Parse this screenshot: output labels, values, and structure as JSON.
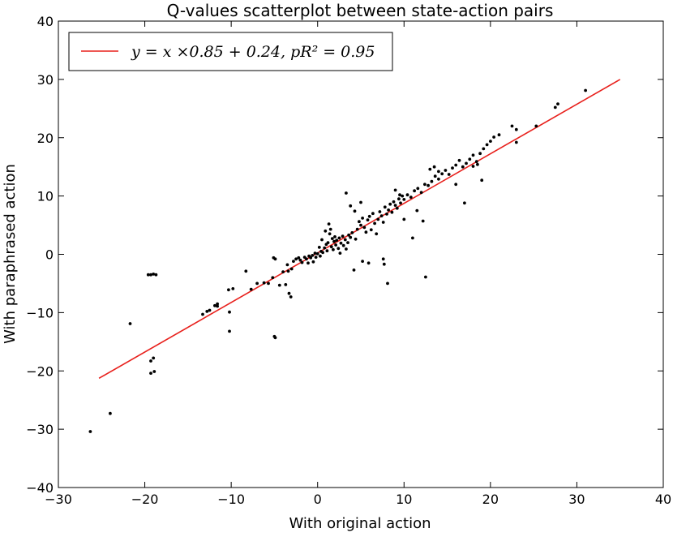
{
  "chart_data": {
    "type": "scatter",
    "title": "Q-values scatterplot between state-action pairs",
    "xlabel": "With original action",
    "ylabel": "With paraphrased action",
    "xlim": [
      -30,
      40
    ],
    "ylim": [
      -40,
      40
    ],
    "xticks": [
      "−30",
      "−20",
      "−10",
      "0",
      "10",
      "20",
      "30",
      "40"
    ],
    "yticks": [
      "−40",
      "−30",
      "−20",
      "−10",
      "0",
      "10",
      "20",
      "30",
      "40"
    ],
    "grid": false,
    "legend": {
      "placement": "top-left",
      "label": "y = x ×0.85 + 0.24,  pR² = 0.95"
    },
    "colors": {
      "points": "#000000",
      "fit_line": "#e8201c"
    },
    "fit_line": {
      "slope": 0.85,
      "intercept": 0.24,
      "x_range": [
        -25.3,
        35
      ]
    },
    "points": [
      [
        -26.3,
        -30.4
      ],
      [
        -24.0,
        -27.3
      ],
      [
        -21.7,
        -11.9
      ],
      [
        -19.6,
        -3.5
      ],
      [
        -19.3,
        -3.5
      ],
      [
        -19.0,
        -3.4
      ],
      [
        -18.7,
        -3.5
      ],
      [
        -19.3,
        -18.3
      ],
      [
        -19.0,
        -17.8
      ],
      [
        -19.3,
        -20.4
      ],
      [
        -18.9,
        -20.1
      ],
      [
        -13.3,
        -10.3
      ],
      [
        -12.8,
        -9.8
      ],
      [
        -12.5,
        -9.6
      ],
      [
        -11.9,
        -8.8
      ],
      [
        -11.6,
        -8.5
      ],
      [
        -11.6,
        -8.9
      ],
      [
        -10.3,
        -6.1
      ],
      [
        -10.2,
        -9.9
      ],
      [
        -9.8,
        -5.9
      ],
      [
        -10.2,
        -13.2
      ],
      [
        -8.3,
        -2.9
      ],
      [
        -7.7,
        -6.0
      ],
      [
        -7.0,
        -5.0
      ],
      [
        -6.2,
        -4.9
      ],
      [
        -5.7,
        -5.0
      ],
      [
        -5.1,
        -0.6
      ],
      [
        -4.9,
        -0.8
      ],
      [
        -5.0,
        -14.1
      ],
      [
        -4.9,
        -14.3
      ],
      [
        -5.2,
        -4.0
      ],
      [
        -4.4,
        -5.3
      ],
      [
        -4.0,
        -3.0
      ],
      [
        -3.7,
        -5.2
      ],
      [
        -3.5,
        -1.8
      ],
      [
        -3.4,
        -2.9
      ],
      [
        -3.3,
        -6.7
      ],
      [
        -3.1,
        -7.3
      ],
      [
        -3.0,
        -2.5
      ],
      [
        -2.8,
        -1.2
      ],
      [
        -2.5,
        -0.8
      ],
      [
        -2.2,
        -0.6
      ],
      [
        -2.0,
        -1.0
      ],
      [
        -1.8,
        -1.4
      ],
      [
        -1.5,
        -0.5
      ],
      [
        -1.3,
        -0.8
      ],
      [
        -1.1,
        -1.5
      ],
      [
        -1.0,
        -0.3
      ],
      [
        -0.8,
        -0.6
      ],
      [
        -0.6,
        -0.2
      ],
      [
        -0.5,
        -1.3
      ],
      [
        -0.3,
        0.2
      ],
      [
        -0.2,
        -0.5
      ],
      [
        0.0,
        0.1
      ],
      [
        0.2,
        1.2
      ],
      [
        0.3,
        -0.3
      ],
      [
        0.4,
        0.5
      ],
      [
        0.5,
        2.5
      ],
      [
        0.6,
        0.3
      ],
      [
        0.8,
        1.1
      ],
      [
        0.9,
        4.0
      ],
      [
        1.0,
        1.7
      ],
      [
        1.1,
        0.6
      ],
      [
        1.2,
        2.0
      ],
      [
        1.3,
        5.2
      ],
      [
        1.4,
        3.5
      ],
      [
        1.5,
        4.3
      ],
      [
        1.6,
        1.3
      ],
      [
        1.7,
        2.7
      ],
      [
        1.8,
        0.8
      ],
      [
        1.9,
        2.2
      ],
      [
        2.0,
        3.0
      ],
      [
        2.1,
        1.6
      ],
      [
        2.2,
        2.4
      ],
      [
        2.4,
        1.0
      ],
      [
        2.5,
        2.8
      ],
      [
        2.6,
        0.2
      ],
      [
        2.7,
        1.9
      ],
      [
        2.9,
        3.1
      ],
      [
        3.0,
        1.5
      ],
      [
        3.2,
        2.5
      ],
      [
        3.3,
        0.9
      ],
      [
        3.5,
        2.0
      ],
      [
        3.6,
        3.3
      ],
      [
        3.8,
        2.9
      ],
      [
        4.0,
        3.7
      ],
      [
        4.2,
        -2.7
      ],
      [
        4.4,
        2.6
      ],
      [
        4.6,
        4.3
      ],
      [
        4.8,
        5.6
      ],
      [
        5.0,
        5.0
      ],
      [
        5.2,
        6.2
      ],
      [
        5.4,
        4.6
      ],
      [
        5.6,
        3.8
      ],
      [
        5.8,
        5.9
      ],
      [
        6.0,
        6.5
      ],
      [
        6.2,
        4.2
      ],
      [
        6.4,
        7.0
      ],
      [
        6.6,
        5.3
      ],
      [
        6.8,
        3.5
      ],
      [
        7.0,
        6.0
      ],
      [
        7.2,
        7.3
      ],
      [
        7.4,
        6.6
      ],
      [
        7.6,
        5.5
      ],
      [
        7.8,
        8.1
      ],
      [
        8.0,
        6.9
      ],
      [
        8.2,
        7.6
      ],
      [
        8.4,
        8.6
      ],
      [
        8.6,
        7.2
      ],
      [
        8.8,
        9.0
      ],
      [
        9.0,
        8.4
      ],
      [
        9.2,
        7.9
      ],
      [
        9.4,
        9.5
      ],
      [
        9.6,
        8.8
      ],
      [
        9.8,
        10.0
      ],
      [
        10.0,
        9.4
      ],
      [
        10.4,
        10.2
      ],
      [
        10.8,
        9.8
      ],
      [
        11.2,
        10.9
      ],
      [
        11.6,
        11.3
      ],
      [
        12.0,
        10.6
      ],
      [
        12.4,
        12.0
      ],
      [
        12.8,
        11.8
      ],
      [
        13.2,
        12.5
      ],
      [
        13.6,
        13.4
      ],
      [
        14.0,
        12.9
      ],
      [
        14.4,
        13.8
      ],
      [
        14.8,
        14.4
      ],
      [
        15.2,
        13.7
      ],
      [
        15.6,
        14.8
      ],
      [
        16.0,
        15.3
      ],
      [
        16.4,
        16.1
      ],
      [
        16.8,
        15.0
      ],
      [
        17.2,
        15.6
      ],
      [
        17.6,
        16.3
      ],
      [
        18.0,
        17.0
      ],
      [
        18.4,
        15.9
      ],
      [
        18.8,
        17.3
      ],
      [
        19.2,
        18.1
      ],
      [
        19.6,
        18.8
      ],
      [
        20.0,
        19.4
      ],
      [
        20.4,
        20.1
      ],
      [
        3.3,
        10.5
      ],
      [
        3.8,
        8.3
      ],
      [
        4.3,
        7.4
      ],
      [
        5.0,
        8.9
      ],
      [
        5.2,
        -1.2
      ],
      [
        5.9,
        -1.5
      ],
      [
        7.6,
        -0.8
      ],
      [
        7.7,
        -1.7
      ],
      [
        8.1,
        -5.0
      ],
      [
        9.0,
        11.0
      ],
      [
        9.5,
        10.2
      ],
      [
        10.0,
        6.0
      ],
      [
        11.0,
        2.8
      ],
      [
        11.5,
        7.5
      ],
      [
        12.5,
        -3.9
      ],
      [
        12.2,
        5.7
      ],
      [
        13.0,
        14.6
      ],
      [
        13.5,
        15.0
      ],
      [
        14.0,
        14.2
      ],
      [
        16.0,
        12.0
      ],
      [
        17.0,
        8.8
      ],
      [
        18.0,
        15.1
      ],
      [
        18.5,
        15.4
      ],
      [
        19.0,
        12.7
      ],
      [
        21.0,
        20.5
      ],
      [
        22.5,
        22.0
      ],
      [
        23.0,
        21.4
      ],
      [
        23.0,
        19.2
      ],
      [
        25.3,
        22.0
      ],
      [
        27.5,
        25.2
      ],
      [
        27.8,
        25.8
      ],
      [
        31.0,
        28.1
      ]
    ]
  }
}
